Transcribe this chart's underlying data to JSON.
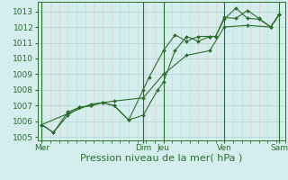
{
  "bg_color": "#d4eeed",
  "grid_color_major": "#b8d8d4",
  "grid_color_minor": "#e0c8c8",
  "line_color": "#2d6e2d",
  "xlabel": "Pression niveau de la mer( hPa )",
  "xlabel_fontsize": 8,
  "tick_fontsize": 6.5,
  "ylim": [
    1004.8,
    1013.6
  ],
  "yticks": [
    1005,
    1006,
    1007,
    1008,
    1009,
    1010,
    1011,
    1012,
    1013
  ],
  "xlim": [
    -0.15,
    8.4
  ],
  "day_labels": [
    "Mer",
    "Dim",
    "Jeu",
    "Ven",
    "Sam"
  ],
  "day_positions": [
    0,
    3.5,
    4.2,
    6.3,
    8.2
  ],
  "vline_positions": [
    0,
    3.5,
    4.2,
    6.3,
    8.2
  ],
  "series1_x": [
    0.0,
    0.4,
    0.9,
    1.3,
    1.7,
    2.1,
    2.5,
    3.0,
    3.5,
    4.0,
    4.2,
    4.6,
    5.0,
    5.4,
    5.8,
    6.0,
    6.3,
    6.7,
    7.1,
    7.5,
    7.9,
    8.2
  ],
  "series1_y": [
    1005.8,
    1005.3,
    1006.4,
    1006.9,
    1007.0,
    1007.2,
    1007.0,
    1006.1,
    1006.4,
    1008.0,
    1008.5,
    1010.5,
    1011.4,
    1011.1,
    1011.4,
    1011.4,
    1012.6,
    1012.55,
    1013.05,
    1012.55,
    1012.0,
    1012.8
  ],
  "series2_x": [
    0.0,
    0.4,
    0.9,
    1.3,
    1.7,
    2.1,
    2.5,
    3.0,
    3.5,
    3.7,
    4.2,
    4.6,
    5.0,
    5.4,
    5.8,
    6.0,
    6.3,
    6.7,
    7.1,
    7.5,
    7.9,
    8.2
  ],
  "series2_y": [
    1005.8,
    1005.3,
    1006.6,
    1006.9,
    1007.0,
    1007.2,
    1007.0,
    1006.1,
    1008.0,
    1008.8,
    1010.5,
    1011.5,
    1011.1,
    1011.4,
    1011.4,
    1011.4,
    1012.5,
    1013.2,
    1012.55,
    1012.5,
    1012.0,
    1012.8
  ],
  "series3_x": [
    0.0,
    0.9,
    1.7,
    2.5,
    3.5,
    4.2,
    5.0,
    5.8,
    6.3,
    7.1,
    7.9,
    8.2
  ],
  "series3_y": [
    1005.8,
    1006.5,
    1007.1,
    1007.3,
    1007.5,
    1009.0,
    1010.2,
    1010.5,
    1012.0,
    1012.1,
    1012.0,
    1012.8
  ]
}
